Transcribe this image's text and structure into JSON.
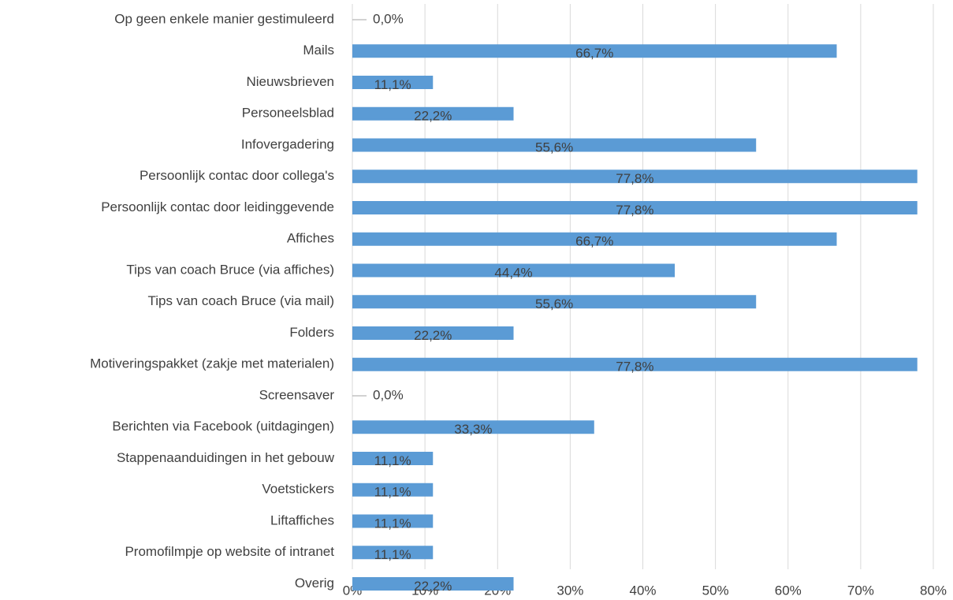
{
  "chart_data": {
    "type": "bar",
    "orientation": "horizontal",
    "categories": [
      "Op geen enkele manier gestimuleerd",
      "Mails",
      "Nieuwsbrieven",
      "Personeelsblad",
      "Infovergadering",
      "Persoonlijk contac door collega's",
      "Persoonlijk contac door leidinggevende",
      "Affiches",
      "Tips van coach Bruce (via affiches)",
      "Tips van coach Bruce (via mail)",
      "Folders",
      "Motiveringspakket (zakje met materialen)",
      "Screensaver",
      "Berichten via Facebook (uitdagingen)",
      "Stappenaanduidingen in het gebouw",
      "Voetstickers",
      "Liftaffiches",
      "Promofilmpje op website of intranet",
      "Overig"
    ],
    "values": [
      0,
      66.7,
      11.1,
      22.2,
      55.6,
      77.8,
      77.8,
      66.7,
      44.4,
      55.6,
      22.2,
      77.8,
      0,
      33.3,
      11.1,
      11.1,
      11.1,
      11.1,
      22.2
    ],
    "value_labels": [
      "0,0%",
      "66,7%",
      "11,1%",
      "22,2%",
      "55,6%",
      "77,8%",
      "77,8%",
      "66,7%",
      "44,4%",
      "55,6%",
      "22,2%",
      "77,8%",
      "0,0%",
      "33,3%",
      "11,1%",
      "11,1%",
      "11,1%",
      "11,1%",
      "22,2%"
    ],
    "color": "#5b9bd5",
    "xlim": [
      0,
      80
    ],
    "xticks": [
      {
        "value": 0,
        "label": "0%"
      },
      {
        "value": 10,
        "label": "10%"
      },
      {
        "value": 20,
        "label": "20%"
      },
      {
        "value": 30,
        "label": "30%"
      },
      {
        "value": 40,
        "label": "40%"
      },
      {
        "value": 50,
        "label": "50%"
      },
      {
        "value": 60,
        "label": "60%"
      },
      {
        "value": 70,
        "label": "70%"
      },
      {
        "value": 80,
        "label": "80%"
      }
    ],
    "grid": true
  }
}
